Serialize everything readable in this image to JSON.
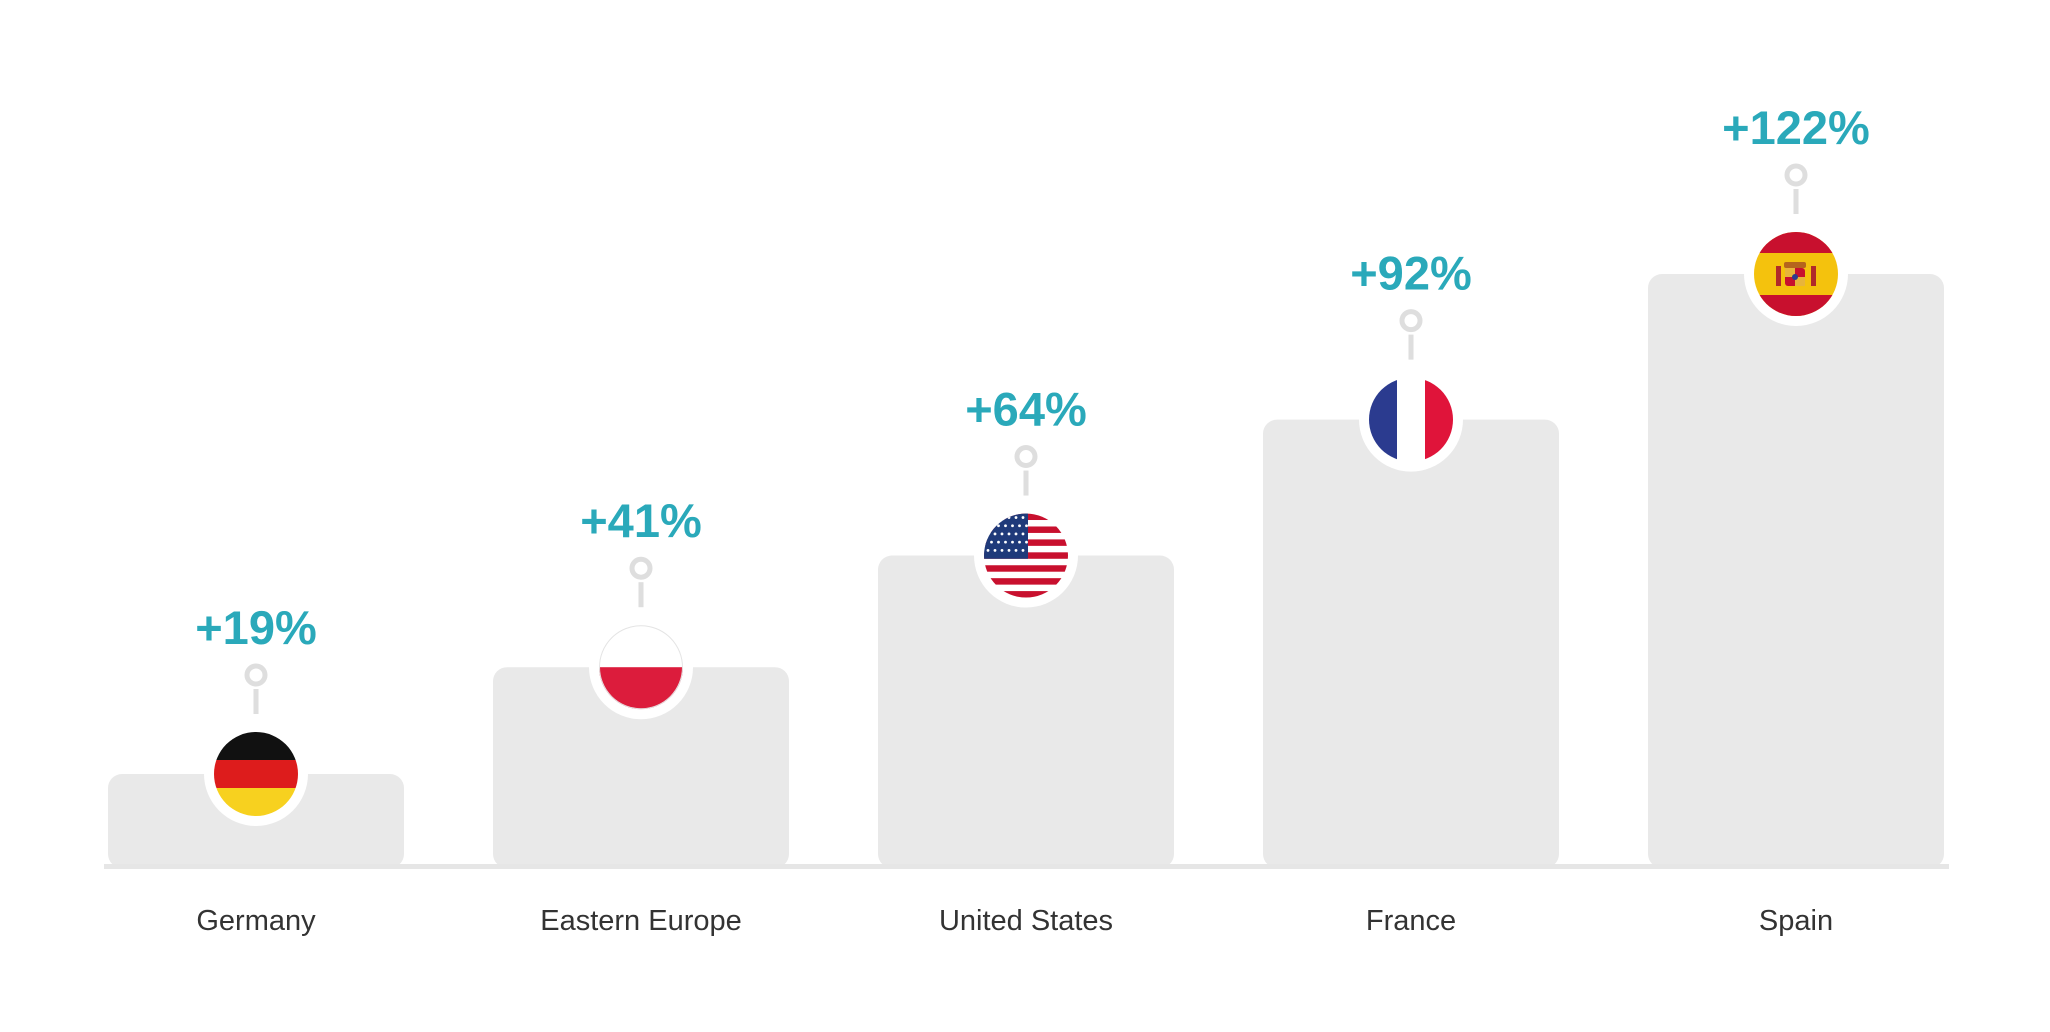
{
  "chart_data": {
    "type": "bar",
    "categories": [
      "Germany",
      "Eastern Europe",
      "United States",
      "France",
      "Spain"
    ],
    "values": [
      19,
      41,
      64,
      92,
      122
    ],
    "value_labels": [
      "+19%",
      "+41%",
      "+64%",
      "+92%",
      "+122%"
    ],
    "unit": "%",
    "ylim": [
      0,
      122
    ],
    "grid": false,
    "legend": "none",
    "flags": [
      "germany-flag-icon",
      "poland-flag-icon",
      "usa-flag-icon",
      "france-flag-icon",
      "spain-flag-icon"
    ]
  },
  "colors": {
    "bar": "#e9e9e9",
    "value_label": "#2aa9ba",
    "category_label": "#333333",
    "baseline": "#e6e6e6"
  }
}
